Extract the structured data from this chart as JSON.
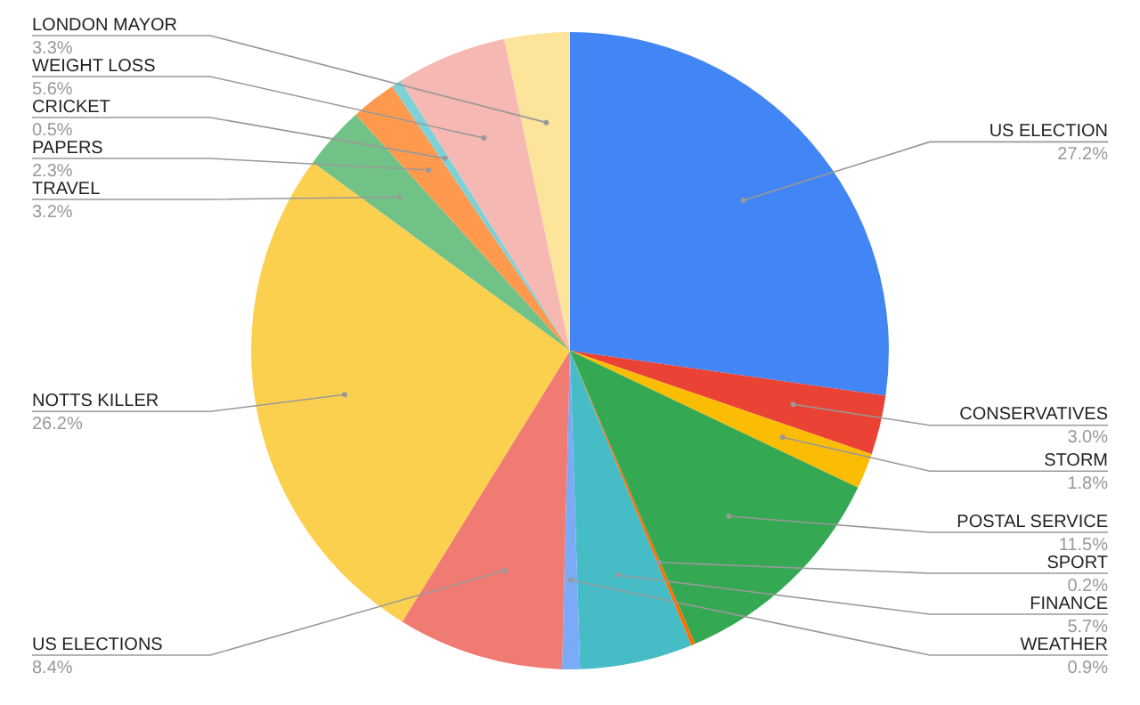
{
  "chart_data": {
    "type": "pie",
    "categories": [
      "US ELECTION",
      "CONSERVATIVES",
      "STORM",
      "POSTAL SERVICE",
      "SPORT",
      "FINANCE",
      "WEATHER",
      "US ELECTIONS",
      "NOTTS KILLER",
      "TRAVEL",
      "PAPERS",
      "CRICKET",
      "WEIGHT LOSS",
      "LONDON MAYOR"
    ],
    "values": [
      27.2,
      3.0,
      1.8,
      11.5,
      0.2,
      5.7,
      0.9,
      8.4,
      26.2,
      3.2,
      2.3,
      0.5,
      5.6,
      3.3
    ],
    "value_labels": [
      "27.2%",
      "3.0%",
      "1.8%",
      "11.5%",
      "0.2%",
      "5.7%",
      "0.9%",
      "8.4%",
      "26.2%",
      "3.2%",
      "2.3%",
      "0.5%",
      "5.6%",
      "3.3%"
    ],
    "colors": [
      "#4285f4",
      "#ea4335",
      "#fbbc04",
      "#34a853",
      "#ff6d01",
      "#46bdc6",
      "#7baaf7",
      "#f07b72",
      "#fcd04f",
      "#71c287",
      "#ff994d",
      "#7ed1d7",
      "#f6b8b3",
      "#fde49b"
    ],
    "legend": false
  }
}
